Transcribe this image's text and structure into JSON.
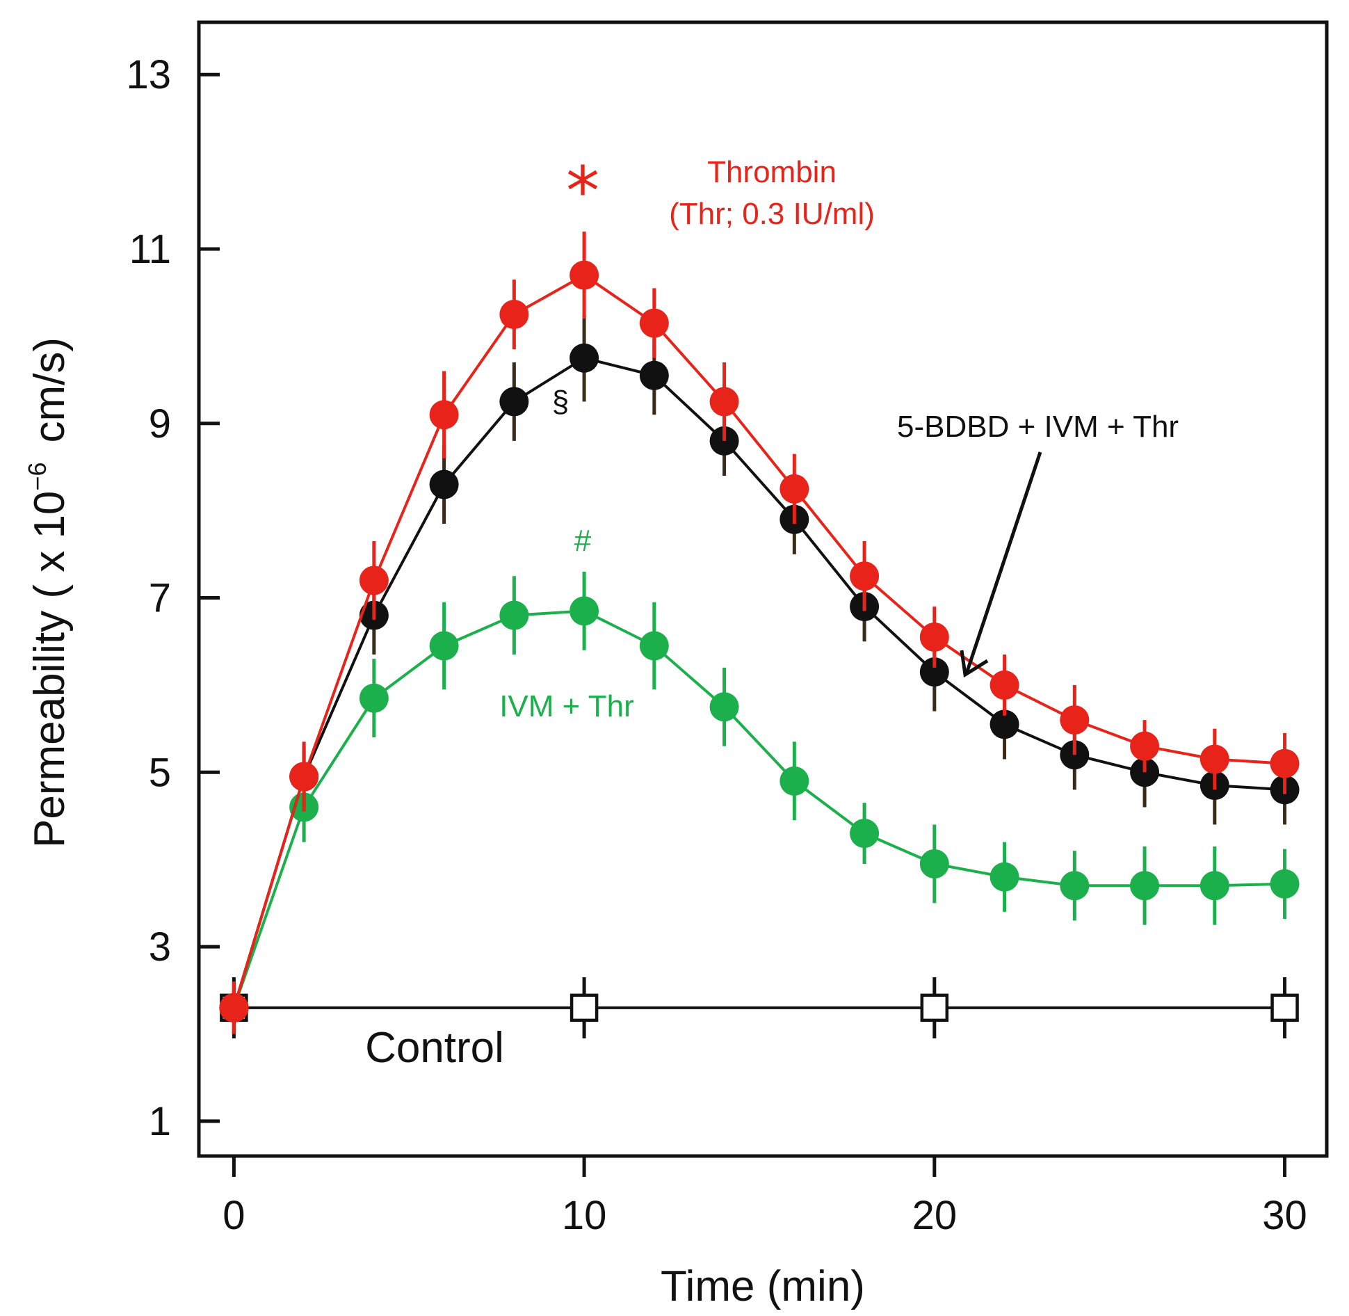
{
  "chart_data": {
    "type": "line",
    "xlabel": "Time (min)",
    "ylabel_prefix": "Permeability ( x 10",
    "ylabel_exponent": "−6",
    "ylabel_suffix": "cm/s)",
    "xlim": [
      -1,
      31.2
    ],
    "ylim": [
      0.6,
      13.6
    ],
    "xticks": [
      0,
      10,
      20,
      30
    ],
    "yticks": [
      1,
      3,
      5,
      7,
      9,
      11,
      13
    ],
    "grid": false,
    "series": [
      {
        "name": "Control",
        "color": "#111111",
        "marker": "open-square",
        "x": [
          0,
          10,
          20,
          30
        ],
        "y": [
          2.3,
          2.3,
          2.3,
          2.3
        ],
        "err": [
          0.35,
          0.35,
          0.35,
          0.35
        ]
      },
      {
        "name": "IVM + Thr",
        "color": "#1bb04b",
        "marker": "filled-circle",
        "x": [
          0,
          2,
          4,
          6,
          8,
          10,
          12,
          14,
          16,
          18,
          20,
          22,
          24,
          26,
          28,
          30
        ],
        "y": [
          2.3,
          4.6,
          5.85,
          6.45,
          6.8,
          6.85,
          6.45,
          5.75,
          4.9,
          4.3,
          3.95,
          3.8,
          3.7,
          3.7,
          3.7,
          3.72
        ],
        "err": [
          0.3,
          0.4,
          0.45,
          0.5,
          0.45,
          0.45,
          0.5,
          0.45,
          0.45,
          0.35,
          0.45,
          0.4,
          0.4,
          0.45,
          0.45,
          0.4
        ]
      },
      {
        "name": "5-BDBD + IVM + Thr",
        "color": "#111111",
        "marker": "filled-circle",
        "x": [
          0,
          2,
          4,
          6,
          8,
          10,
          12,
          14,
          16,
          18,
          20,
          22,
          24,
          26,
          28,
          30
        ],
        "y": [
          2.3,
          4.95,
          6.8,
          8.3,
          9.25,
          9.75,
          9.55,
          8.8,
          7.9,
          6.9,
          6.15,
          5.55,
          5.2,
          5.0,
          4.85,
          4.8
        ],
        "err": [
          0.3,
          0.35,
          0.45,
          0.45,
          0.45,
          0.5,
          0.45,
          0.4,
          0.4,
          0.4,
          0.45,
          0.4,
          0.4,
          0.4,
          0.45,
          0.4
        ]
      },
      {
        "name": "Thrombin (Thr; 0.3 IU/ml)",
        "color": "#e8231a",
        "marker": "filled-circle",
        "x": [
          0,
          2,
          4,
          6,
          8,
          10,
          12,
          14,
          16,
          18,
          20,
          22,
          24,
          26,
          28,
          30
        ],
        "y": [
          2.3,
          4.95,
          7.2,
          9.1,
          10.25,
          10.7,
          10.15,
          9.25,
          8.25,
          7.25,
          6.55,
          6.0,
          5.6,
          5.3,
          5.15,
          5.1
        ],
        "err": [
          0.3,
          0.4,
          0.45,
          0.5,
          0.4,
          0.5,
          0.4,
          0.45,
          0.4,
          0.4,
          0.35,
          0.35,
          0.4,
          0.3,
          0.35,
          0.35
        ]
      }
    ],
    "annotations": {
      "thrombin_line1": "Thrombin",
      "thrombin_line2": "(Thr; 0.3 IU/ml)",
      "bdbd_label": "5-BDBD + IVM + Thr",
      "ivm_label": "IVM + Thr",
      "control_label": "Control",
      "asterisk": "*",
      "hash": "#",
      "section": "§"
    }
  }
}
